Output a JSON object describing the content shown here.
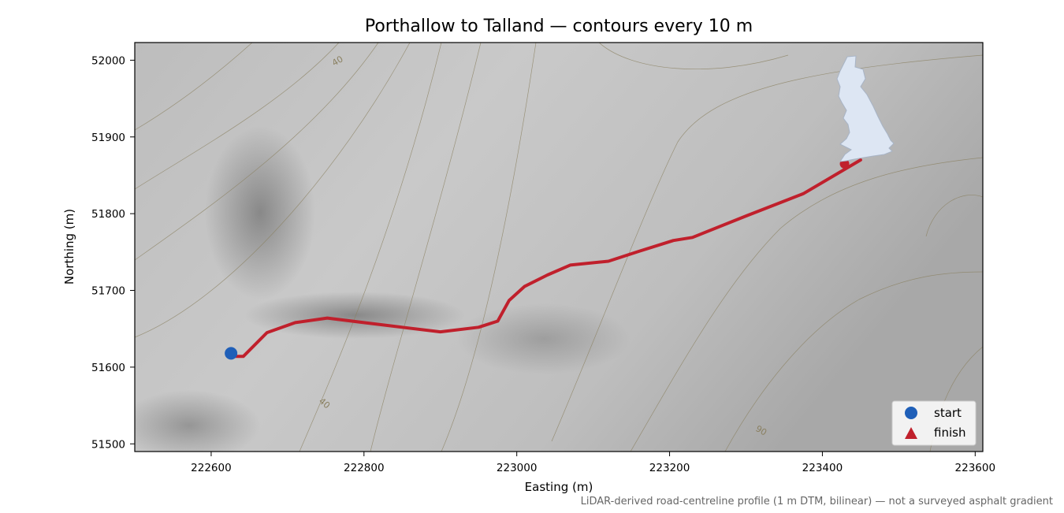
{
  "title": "Porthallow to Talland — contours every 10 m",
  "footnote": "LiDAR-derived road-centreline profile (1 m DTM, bilinear) — not a surveyed asphalt gradient",
  "colors": {
    "route": "#c0202c",
    "start": "#1f5fb8",
    "finish": "#c0202c",
    "inset_land": "#dde6f3",
    "contour": "#8a8060"
  },
  "chart_data": {
    "type": "line",
    "xlabel": "Easting (m)",
    "ylabel": "Northing (m)",
    "xlim": [
      222500,
      223610
    ],
    "ylim": [
      51490,
      52023
    ],
    "xticks": [
      222600,
      222800,
      223000,
      223200,
      223400,
      223600
    ],
    "yticks": [
      51500,
      51600,
      51700,
      51800,
      51900,
      52000
    ],
    "route": {
      "x": [
        222630,
        222642,
        222673,
        222710,
        222752,
        222800,
        222850,
        222900,
        222950,
        222975,
        222990,
        223010,
        223040,
        223070,
        223120,
        223160,
        223205,
        223230,
        223300,
        223375,
        223450
      ],
      "y": [
        51614,
        51614,
        51645,
        51658,
        51664,
        51658,
        51652,
        51646,
        51652,
        51660,
        51687,
        51705,
        51720,
        51733,
        51738,
        51751,
        51765,
        51769,
        51797,
        51826,
        51870
      ]
    },
    "start": {
      "x": 222626,
      "y": 51618,
      "label": "start"
    },
    "finish": {
      "x": 223429,
      "y": 51865,
      "label": "finish"
    },
    "contour_labels": [
      "40",
      "40",
      "90"
    ],
    "legend_position": "lower-right"
  }
}
